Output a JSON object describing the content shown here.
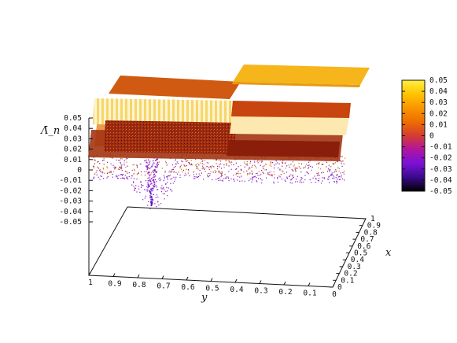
{
  "chart_data": {
    "type": "surface3d",
    "zlabel": "Λ̄_n",
    "xlabel": "x",
    "ylabel": "y",
    "z_ticks": [
      "0.05",
      "0.04",
      "0.03",
      "0.02",
      "0.01",
      "0",
      "-0.01",
      "-0.02",
      "-0.03",
      "-0.04",
      "-0.05"
    ],
    "y_ticks": [
      "1",
      "0.9",
      "0.8",
      "0.7",
      "0.6",
      "0.5",
      "0.4",
      "0.3",
      "0.2",
      "0.1",
      "0"
    ],
    "x_ticks": [
      "0",
      "0.1",
      "0.2",
      "0.3",
      "0.4",
      "0.5",
      "0.6",
      "0.7",
      "0.8",
      "0.9",
      "1"
    ],
    "colorbar": {
      "ticks": [
        "0.05",
        "0.04",
        "0.03",
        "0.02",
        "0.01",
        "0",
        "-0.01",
        "-0.02",
        "-0.03",
        "-0.04",
        "-0.05"
      ],
      "range": [
        -0.05,
        0.05
      ],
      "palette": [
        "#000000",
        "#3a0a8c",
        "#7a12d6",
        "#b0149e",
        "#d43c33",
        "#ee6d00",
        "#f99500",
        "#ffc400",
        "#ffef40"
      ]
    },
    "xlim": [
      0,
      1
    ],
    "ylim": [
      0,
      1
    ],
    "zlim": [
      -0.05,
      0.05
    ],
    "surface_levels": [
      {
        "z": 0.05,
        "color": "#f7bf1a"
      },
      {
        "z": 0.045,
        "color": "#ea7212"
      },
      {
        "z": 0.042,
        "color": "#d4620e"
      },
      {
        "z": 0.035,
        "color": "#b03a12"
      },
      {
        "z": 0.03,
        "color": "#c24a10"
      },
      {
        "z": 0.025,
        "color": "#ffe19a"
      },
      {
        "z": 0.02,
        "color": "#9c2a0f"
      },
      {
        "z": -0.04,
        "color": "#6a14d0"
      }
    ]
  }
}
